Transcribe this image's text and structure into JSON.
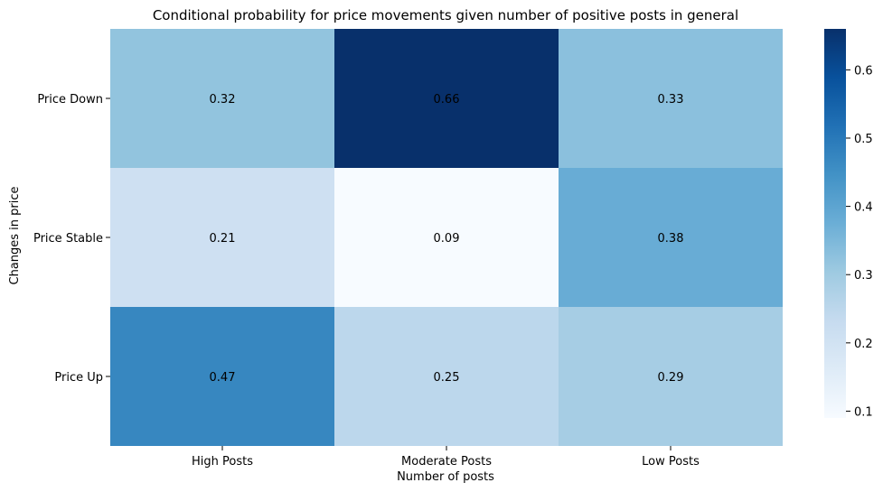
{
  "chart_data": {
    "type": "heatmap",
    "title": "Conditional probability for price movements given number of positive posts in general",
    "xlabel": "Number of posts",
    "ylabel": "Changes in price",
    "x_categories": [
      "High Posts",
      "Moderate Posts",
      "Low Posts"
    ],
    "y_categories": [
      "Price Down",
      "Price Stable",
      "Price Up"
    ],
    "values": [
      [
        0.32,
        0.66,
        0.33
      ],
      [
        0.21,
        0.09,
        0.38
      ],
      [
        0.47,
        0.25,
        0.29
      ]
    ],
    "value_labels": [
      [
        "0.32",
        "0.66",
        "0.33"
      ],
      [
        "0.21",
        "0.09",
        "0.38"
      ],
      [
        "0.47",
        "0.25",
        "0.29"
      ]
    ],
    "colormap": "Blues",
    "colorbar": {
      "min": 0.09,
      "max": 0.66,
      "ticks": [
        0.1,
        0.2,
        0.3,
        0.4,
        0.5,
        0.6
      ],
      "tick_labels": [
        "0.1",
        "0.2",
        "0.3",
        "0.4",
        "0.5",
        "0.6"
      ]
    },
    "legend": "colorbar-right",
    "grid": false
  }
}
